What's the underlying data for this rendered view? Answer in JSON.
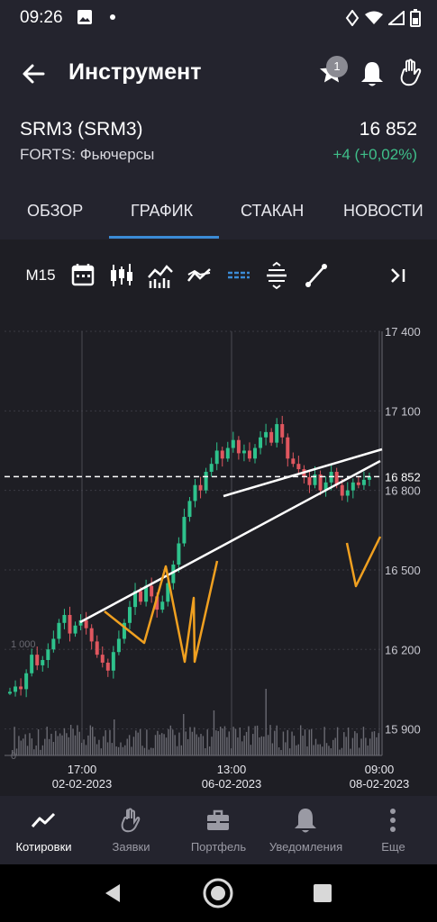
{
  "status_bar": {
    "time": "09:26"
  },
  "app_bar": {
    "title": "Инструмент",
    "notification_count": "1"
  },
  "instrument": {
    "name": "SRM3 (SRM3)",
    "price": "16 852",
    "market": "FORTS: Фьючерсы",
    "change": "+4 (+0,02%)"
  },
  "tabs": [
    "ОБЗОР",
    "ГРАФИК",
    "СТАКАН",
    "НОВОСТИ"
  ],
  "active_tab": "ГРАФИК",
  "toolbar": {
    "timeframe": "M15"
  },
  "chart_data": {
    "type": "candlestick",
    "y_ticks": [
      "17 400",
      "17 100",
      "16 800",
      "16 500",
      "16 200",
      "15 900"
    ],
    "ylim": [
      15800,
      17400
    ],
    "current_price_label": "16 852",
    "current_price": 16852,
    "volume_axis_labels": [
      "1 000",
      "0"
    ],
    "x_ticks": [
      {
        "time": "17:00",
        "date": "02-02-2023"
      },
      {
        "time": "13:00",
        "date": "06-02-2023"
      },
      {
        "time": "09:00",
        "date": "08-02-2023"
      }
    ],
    "colors": {
      "up": "#2ec28c",
      "down": "#e0575f",
      "drawing_white": "#ffffff",
      "drawing_orange": "#f0a020",
      "volume": "#6a6a72"
    },
    "close_series": [
      16040,
      16060,
      16050,
      16110,
      16180,
      16140,
      16160,
      16200,
      16240,
      16300,
      16330,
      16260,
      16290,
      16310,
      16280,
      16230,
      16180,
      16150,
      16120,
      16190,
      16240,
      16300,
      16360,
      16420,
      16380,
      16440,
      16400,
      16350,
      16380,
      16450,
      16520,
      16600,
      16700,
      16760,
      16820,
      16800,
      16870,
      16900,
      16950,
      16920,
      16960,
      16990,
      16940,
      16950,
      16920,
      16960,
      17000,
      17020,
      16980,
      17050,
      17000,
      16920,
      16900,
      16880,
      16850,
      16820,
      16860,
      16800,
      16830,
      16870,
      16820,
      16780,
      16800,
      16830,
      16820,
      16840,
      16852
    ]
  },
  "bottom_nav": [
    {
      "label": "Котировки",
      "icon": "trend-line-icon",
      "active": true
    },
    {
      "label": "Заявки",
      "icon": "hand-icon",
      "active": false
    },
    {
      "label": "Портфель",
      "icon": "briefcase-icon",
      "active": false
    },
    {
      "label": "Уведомления",
      "icon": "bell-icon",
      "active": false
    },
    {
      "label": "Еще",
      "icon": "more-vertical-icon",
      "active": false
    }
  ]
}
